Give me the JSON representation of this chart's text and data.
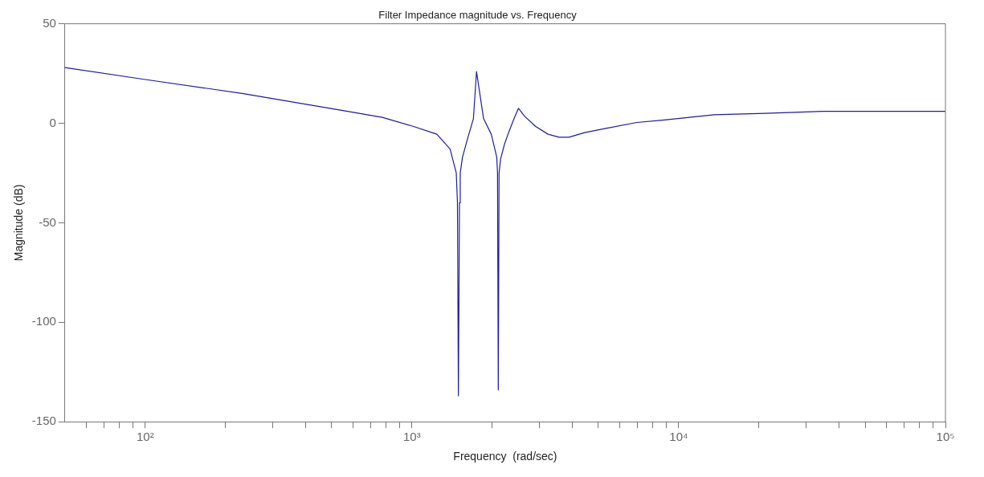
{
  "chart_data": {
    "type": "line",
    "title": "Filter Impedance magnitude vs. Frequency",
    "xlabel": "Frequency  (rad/sec)",
    "ylabel": "Magnitude (dB)",
    "log": "x",
    "grid": false,
    "legend": false,
    "marker": "none",
    "line_style": "solid",
    "xlim": [
      50,
      100000
    ],
    "ylim": [
      -150,
      50
    ],
    "xticks": [
      {
        "value": 60,
        "label": null
      },
      {
        "value": 70,
        "label": null
      },
      {
        "value": 80,
        "label": null
      },
      {
        "value": 90,
        "label": null
      },
      {
        "value": 100,
        "label": "10²"
      },
      {
        "value": 200,
        "label": null
      },
      {
        "value": 300,
        "label": null
      },
      {
        "value": 400,
        "label": null
      },
      {
        "value": 500,
        "label": null
      },
      {
        "value": 600,
        "label": null
      },
      {
        "value": 700,
        "label": null
      },
      {
        "value": 800,
        "label": null
      },
      {
        "value": 900,
        "label": null
      },
      {
        "value": 1000,
        "label": "10³"
      },
      {
        "value": 2000,
        "label": null
      },
      {
        "value": 3000,
        "label": null
      },
      {
        "value": 4000,
        "label": null
      },
      {
        "value": 5000,
        "label": null
      },
      {
        "value": 6000,
        "label": null
      },
      {
        "value": 7000,
        "label": null
      },
      {
        "value": 8000,
        "label": null
      },
      {
        "value": 9000,
        "label": null
      },
      {
        "value": 10000,
        "label": "10⁴"
      },
      {
        "value": 20000,
        "label": null
      },
      {
        "value": 30000,
        "label": null
      },
      {
        "value": 40000,
        "label": null
      },
      {
        "value": 50000,
        "label": null
      },
      {
        "value": 60000,
        "label": null
      },
      {
        "value": 70000,
        "label": null
      },
      {
        "value": 80000,
        "label": null
      },
      {
        "value": 90000,
        "label": null
      },
      {
        "value": 100000,
        "label": "10⁵"
      }
    ],
    "yticks": [
      -150,
      -100,
      -50,
      0,
      50
    ],
    "series": [
      {
        "color": "#1c1ca0",
        "x": [
          50,
          100,
          231,
          518,
          774,
          1014,
          1240,
          1390,
          1466,
          1481,
          1493,
          1507,
          1517,
          1547,
          1622,
          1700,
          1746,
          1855,
          1983,
          2079,
          2093,
          2107,
          2121,
          2149,
          2222,
          2313,
          2425,
          2507,
          2647,
          2909,
          3238,
          3557,
          3880,
          4439,
          5430,
          6966,
          8695,
          13600,
          21200,
          34800,
          100000
        ],
        "values": [
          28,
          22,
          15,
          7,
          3,
          -1.6,
          -5.5,
          -13,
          -25,
          -40,
          -137,
          -40,
          -25,
          -17,
          -7,
          2.4,
          26,
          2.4,
          -5.5,
          -17,
          -25,
          -134,
          -25,
          -18,
          -10.6,
          -4,
          3,
          7.5,
          3.5,
          -1.6,
          -5.5,
          -7,
          -7,
          -4.7,
          -2.4,
          0.4,
          1.6,
          4.3,
          5,
          6,
          6
        ]
      }
    ]
  }
}
